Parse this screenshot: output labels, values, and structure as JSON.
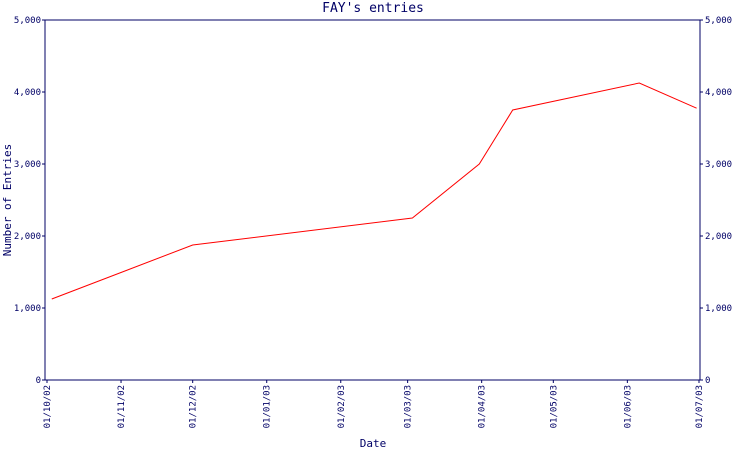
{
  "chart_data": {
    "type": "line",
    "title": "FAY's entries",
    "x_label": "Date",
    "y_label": "Number of Entries",
    "x": [
      "03/10/02",
      "01/12/02",
      "03/03/03",
      "31/03/03",
      "14/04/03",
      "06/06/03",
      "30/06/03"
    ],
    "series": [
      {
        "name": "entries",
        "color": "#ff0000",
        "values": [
          1125,
          1875,
          2250,
          3000,
          3750,
          4125,
          3775
        ]
      }
    ],
    "xlim": [
      "01/10/02",
      "01/07/03"
    ],
    "xticks": [
      "01/10/02",
      "01/11/02",
      "01/12/02",
      "01/01/03",
      "01/02/03",
      "01/03/03",
      "01/04/03",
      "01/05/03",
      "01/06/03",
      "01/07/03"
    ],
    "ylim": [
      0,
      5000
    ],
    "yticks": [
      0,
      {
        "value": 1000,
        "label": "1,000"
      },
      {
        "value": 2000,
        "label": "2,000"
      },
      {
        "value": 3000,
        "label": "3,000"
      },
      {
        "value": 4000,
        "label": "4,000"
      },
      {
        "value": 5000,
        "label": "5,000"
      }
    ],
    "y2lim": [
      0,
      5000
    ],
    "y2ticks": [
      0,
      {
        "value": 1000,
        "label": "1,000"
      },
      {
        "value": 2000,
        "label": "2,000"
      },
      {
        "value": 3000,
        "label": "3,000"
      },
      {
        "value": 4000,
        "label": "4,000"
      },
      {
        "value": 5000,
        "label": "5,000"
      }
    ],
    "grid": false
  }
}
